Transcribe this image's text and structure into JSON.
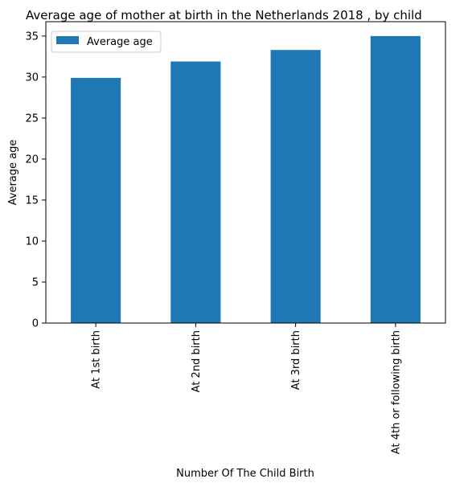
{
  "chart_data": {
    "type": "bar",
    "title": "Average age of mother at birth in the Netherlands 2018 , by child",
    "xlabel": "Number Of The Child Birth",
    "ylabel": "Average age",
    "categories": [
      "At 1st birth",
      "At 2nd birth",
      "At 3rd birth",
      "At 4th or following birth"
    ],
    "series": [
      {
        "name": "Average age",
        "values": [
          29.9,
          31.9,
          33.3,
          35.0
        ],
        "color": "#1f77b4"
      }
    ],
    "ylim": [
      0,
      36.75
    ],
    "yticks": [
      0,
      5,
      10,
      15,
      20,
      25,
      30,
      35
    ],
    "legend": {
      "position": "top-left"
    },
    "grid": false
  }
}
